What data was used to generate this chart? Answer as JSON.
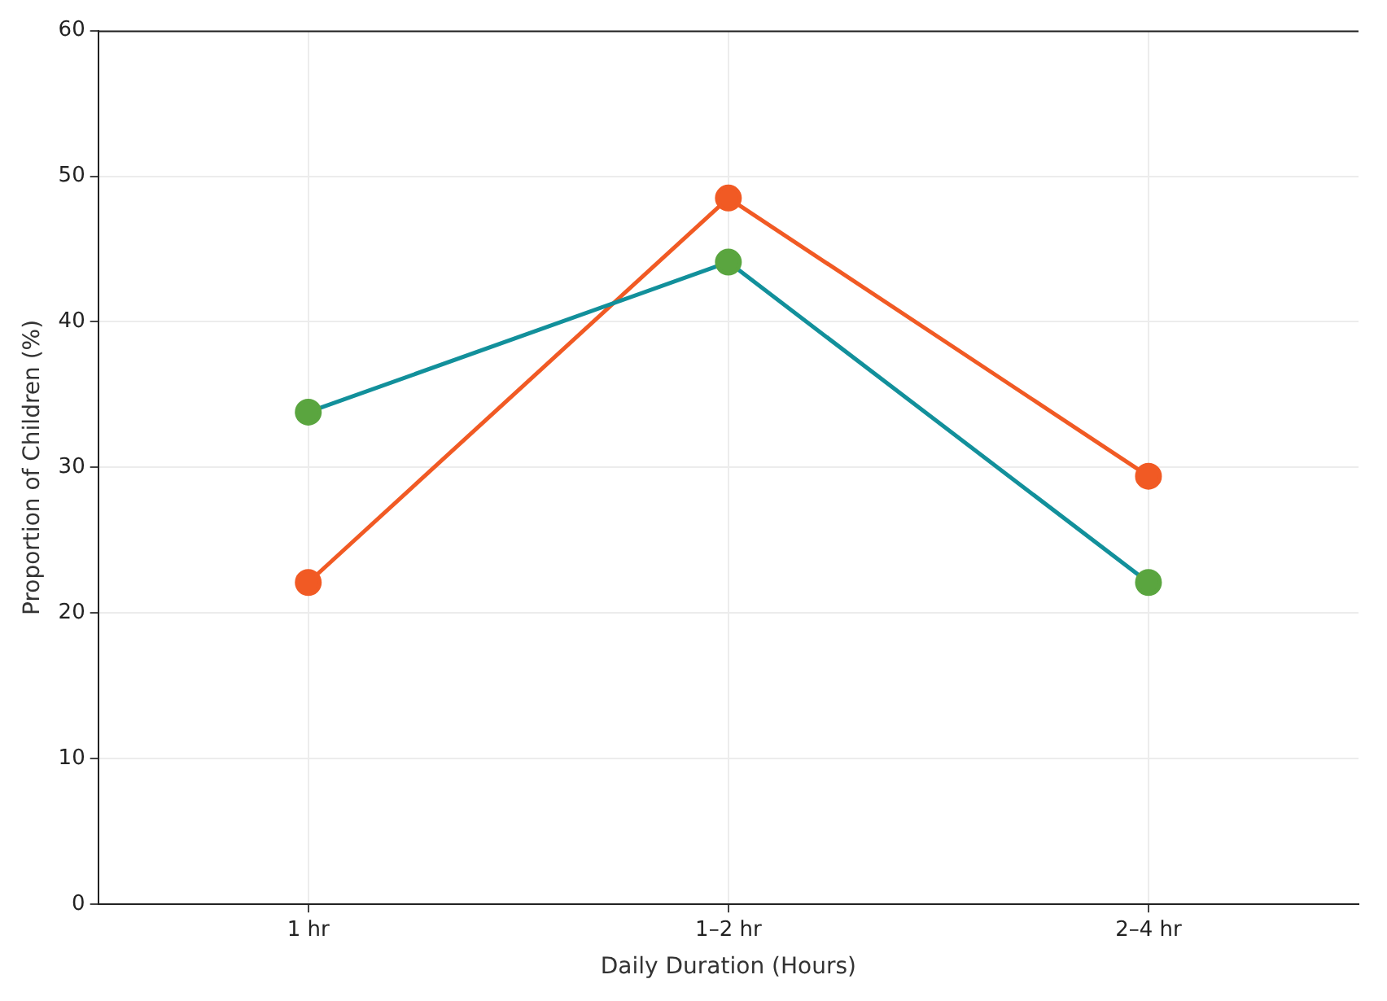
{
  "chart_data": {
    "type": "line",
    "xlabel": "Daily Duration (Hours)",
    "ylabel": "Proportion of Children (%)",
    "categories": [
      "1 hr",
      "1–2 hr",
      "2–4 hr"
    ],
    "series": [
      {
        "color": "#12909b",
        "colors": [
          "#5aa53f",
          "#5aa53f",
          "#5aa53f"
        ],
        "values": [
          33.8,
          44.1,
          22.1
        ]
      },
      {
        "color": "#f15a24",
        "colors": [
          "#f15a24",
          "#f15a24",
          "#f15a24"
        ],
        "values": [
          22.1,
          48.5,
          29.4
        ]
      }
    ],
    "ylim": [
      0,
      60
    ],
    "yticks": [
      0,
      10,
      20,
      30,
      40,
      50,
      60
    ],
    "grid": true,
    "legend": false,
    "marker": "circle",
    "line_style": "solid"
  }
}
